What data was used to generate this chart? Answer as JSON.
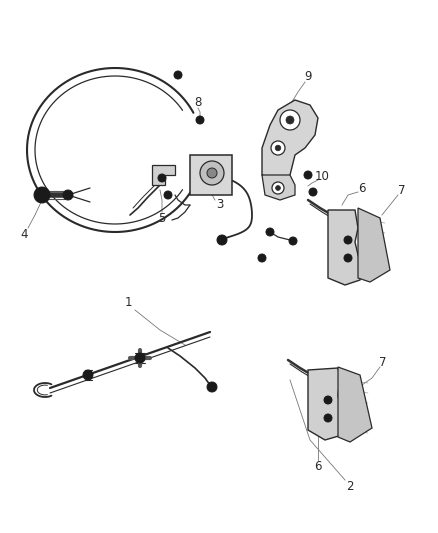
{
  "bg_color": "#ffffff",
  "line_color": "#2a2a2a",
  "label_color": "#2a2a2a",
  "leader_color": "#777777",
  "figsize": [
    4.38,
    5.33
  ],
  "dpi": 100,
  "label_fs": 8.5
}
